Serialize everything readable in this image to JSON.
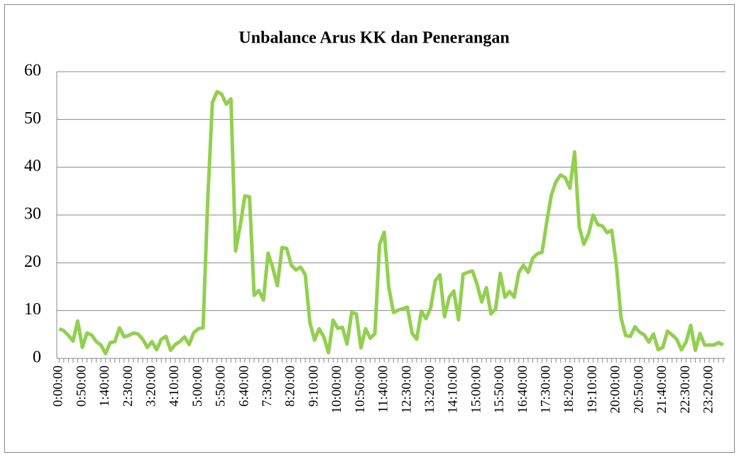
{
  "chart_data": {
    "type": "line",
    "title": "Unbalance Arus KK dan Penerangan",
    "categories": [
      "0:00:00",
      null,
      null,
      null,
      null,
      "0:50:00",
      null,
      null,
      null,
      null,
      "1:40:00",
      null,
      null,
      null,
      null,
      "2:30:00",
      null,
      null,
      null,
      null,
      "3:20:00",
      null,
      null,
      null,
      null,
      "4:10:00",
      null,
      null,
      null,
      null,
      "5:00:00",
      null,
      null,
      null,
      null,
      "5:50:00",
      null,
      null,
      null,
      null,
      "6:40:00",
      null,
      null,
      null,
      null,
      "7:30:00",
      null,
      null,
      null,
      null,
      "8:20:00",
      null,
      null,
      null,
      null,
      "9:10:00",
      null,
      null,
      null,
      null,
      "10:00:00",
      null,
      null,
      null,
      null,
      "10:50:00",
      null,
      null,
      null,
      null,
      "11:40:00",
      null,
      null,
      null,
      null,
      "12:30:00",
      null,
      null,
      null,
      null,
      "13:20:00",
      null,
      null,
      null,
      null,
      "14:10:00",
      null,
      null,
      null,
      null,
      "15:00:00",
      null,
      null,
      null,
      null,
      "15:50:00",
      null,
      null,
      null,
      null,
      "16:40:00",
      null,
      null,
      null,
      null,
      "17:30:00",
      null,
      null,
      null,
      null,
      "18:20:00",
      null,
      null,
      null,
      null,
      "19:10:00",
      null,
      null,
      null,
      null,
      "20:00:00",
      null,
      null,
      null,
      null,
      "20:50:00",
      null,
      null,
      null,
      null,
      "21:40:00",
      null,
      null,
      null,
      null,
      "22:30:00",
      null,
      null,
      null,
      null,
      "23:20:00",
      null,
      null,
      null
    ],
    "series": [
      {
        "color": "#92d050",
        "values": [
          6.2,
          5.8,
          4.8,
          3.6,
          7.8,
          2.3,
          5.3,
          4.9,
          3.5,
          2.8,
          1.0,
          3.3,
          3.5,
          6.4,
          4.5,
          4.8,
          5.3,
          5.1,
          4.0,
          2.3,
          3.5,
          1.8,
          4.0,
          4.6,
          1.7,
          2.9,
          3.5,
          4.5,
          2.9,
          5.4,
          6.2,
          6.4,
          33,
          53.5,
          55.8,
          55.3,
          53.2,
          54.3,
          22.5,
          27.8,
          34,
          33.8,
          13.2,
          14.2,
          12.2,
          22,
          19,
          15.2,
          23.2,
          23,
          19.5,
          18.5,
          19.1,
          17.5,
          7.5,
          3.8,
          6.2,
          4.5,
          1.2,
          8,
          6.3,
          6.5,
          3.0,
          9.6,
          9.3,
          2.2,
          6.2,
          4.2,
          5.2,
          23.8,
          26.4,
          14.8,
          9.6,
          10.1,
          10.4,
          10.7,
          5.3,
          4.0,
          9.9,
          8.3,
          10.5,
          16.2,
          17.5,
          8.7,
          12.8,
          14.1,
          8.1,
          17.6,
          18.0,
          18.3,
          15.5,
          11.8,
          14.8,
          9.3,
          10.4,
          17.8,
          12.8,
          14.0,
          12.8,
          18.0,
          19.5,
          18.0,
          21.0,
          21.9,
          22.2,
          28.5,
          34.2,
          37,
          38.4,
          37.8,
          35.6,
          43.2,
          27.5,
          23.9,
          26,
          30,
          28,
          27.7,
          26.3,
          26.8,
          19.5,
          8.5,
          4.8,
          4.6,
          6.6,
          5.5,
          4.9,
          3.4,
          5.1,
          1.8,
          2.3,
          5.7,
          4.9,
          4.0,
          1.8,
          3.4,
          6.9,
          1.7,
          5.2,
          2.8,
          2.8,
          2.8,
          3.3,
          2.8
        ]
      }
    ],
    "ylim": [
      0,
      60
    ],
    "yticks": [
      0,
      10,
      20,
      30,
      40,
      50,
      60
    ],
    "grid": true
  }
}
